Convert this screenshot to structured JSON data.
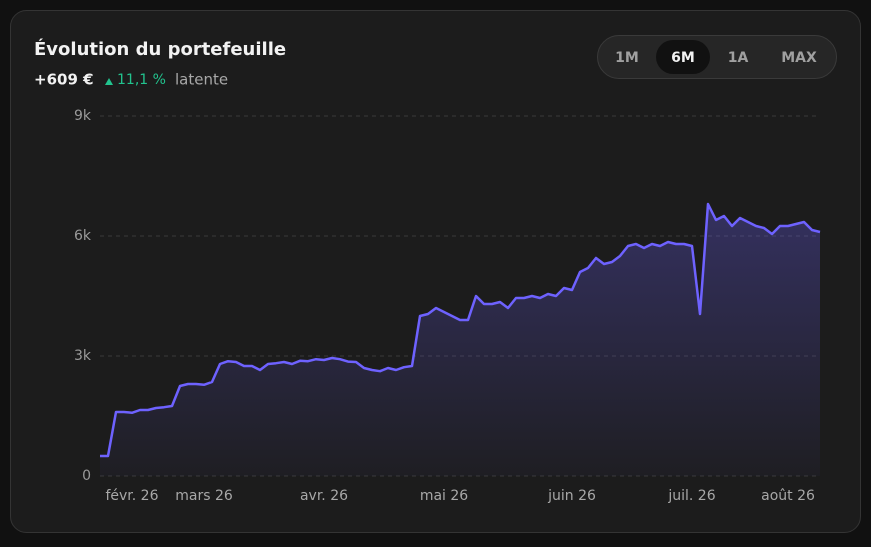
{
  "header": {
    "title": "Évolution du portefeuille",
    "gain": "+609 €",
    "change": "11,1 %",
    "change_note": "latente"
  },
  "range_buttons": [
    "1M",
    "6M",
    "1A",
    "MAX"
  ],
  "active_range": "6M",
  "chart_data": {
    "type": "line",
    "categories": [
      null,
      null,
      null,
      null,
      "févr. 26",
      null,
      null,
      null,
      null,
      null,
      null,
      null,
      null,
      "mars 26",
      null,
      null,
      null,
      null,
      null,
      null,
      null,
      null,
      null,
      null,
      null,
      null,
      null,
      null,
      "avr. 26",
      null,
      null,
      null,
      null,
      null,
      null,
      null,
      null,
      null,
      null,
      null,
      null,
      null,
      null,
      "mai 26",
      null,
      null,
      null,
      null,
      null,
      null,
      null,
      null,
      null,
      null,
      null,
      null,
      null,
      null,
      null,
      "juin 26",
      null,
      null,
      null,
      null,
      null,
      null,
      null,
      null,
      null,
      null,
      null,
      null,
      null,
      null,
      "juil. 26",
      null,
      null,
      null,
      null,
      null,
      null,
      null,
      null,
      null,
      null,
      null,
      "août 26",
      null,
      null,
      null,
      null
    ],
    "series": [
      {
        "name": "Portefeuille",
        "color": "#6e62ff",
        "values": [
          500,
          500,
          1600,
          1600,
          1580,
          1650,
          1650,
          1700,
          1720,
          1750,
          2250,
          2300,
          2300,
          2280,
          2350,
          2800,
          2870,
          2850,
          2750,
          2750,
          2650,
          2800,
          2820,
          2850,
          2800,
          2880,
          2870,
          2920,
          2900,
          2950,
          2920,
          2860,
          2850,
          2700,
          2650,
          2620,
          2700,
          2650,
          2720,
          2750,
          4000,
          4050,
          4200,
          4100,
          4000,
          3900,
          3900,
          4500,
          4300,
          4300,
          4350,
          4200,
          4450,
          4450,
          4500,
          4450,
          4550,
          4500,
          4700,
          4650,
          5100,
          5200,
          5450,
          5300,
          5350,
          5500,
          5750,
          5800,
          5700,
          5800,
          5750,
          5850,
          5800,
          5800,
          5750,
          4050,
          6800,
          6400,
          6500,
          6250,
          6450,
          6350,
          6250,
          6200,
          6050,
          6250,
          6250,
          6300,
          6350,
          6150,
          6100
        ]
      }
    ],
    "ylim": [
      0,
      9000
    ],
    "yticks": [
      0,
      {
        "value": 3000,
        "label": "3k"
      },
      {
        "value": 6000,
        "label": "6k"
      },
      {
        "value": 9000,
        "label": "9k"
      }
    ],
    "grid": true
  }
}
